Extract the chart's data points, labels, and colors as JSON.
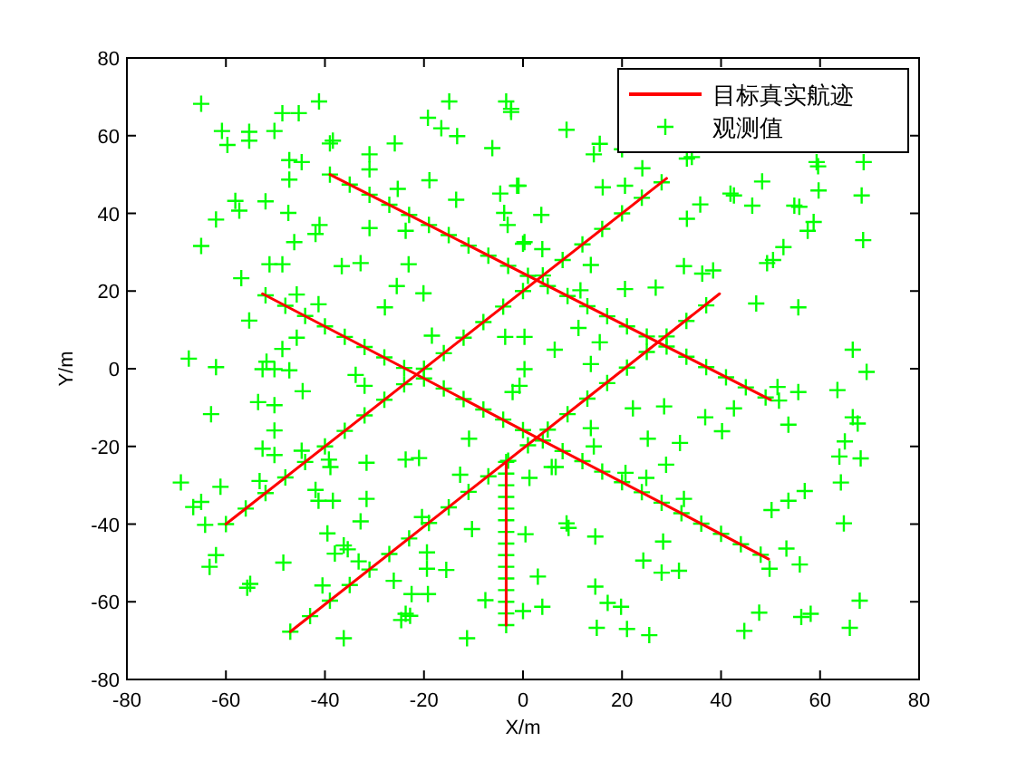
{
  "chart_data": {
    "type": "scatter",
    "xlabel": "X/m",
    "ylabel": "Y/m",
    "xlim": [
      -80,
      80
    ],
    "ylim": [
      -80,
      80
    ],
    "xticks": [
      -80,
      -60,
      -40,
      -20,
      0,
      20,
      40,
      60,
      80
    ],
    "yticks": [
      -80,
      -60,
      -40,
      -20,
      0,
      20,
      40,
      60,
      80
    ],
    "legend": "top right",
    "series": [
      {
        "name": "目标真实航迹",
        "type": "line",
        "color": "#ff0000",
        "line_style": "solid",
        "x": [
          -60,
          29
        ],
        "values": [
          -40,
          49
        ]
      },
      {
        "type": "line",
        "color": "#ff0000",
        "line_style": "solid",
        "x": [
          -39,
          50
        ],
        "values": [
          50,
          -8
        ]
      },
      {
        "type": "line",
        "color": "#ff0000",
        "line_style": "solid",
        "x": [
          -52.6,
          49.6
        ],
        "values": [
          19.3,
          -49
        ]
      },
      {
        "type": "line",
        "color": "#ff0000",
        "line_style": "solid",
        "x": [
          -47,
          39.7
        ],
        "values": [
          -67.7,
          19.3
        ]
      },
      {
        "type": "line",
        "color": "#ff0000",
        "line_style": "solid",
        "x": [
          -3.4,
          -3.4
        ],
        "values": [
          -24,
          -66
        ]
      },
      {
        "name": "观测值",
        "color": "#00ff00",
        "marker": "cross",
        "x": [
          -60,
          -56,
          -52,
          -48,
          -44,
          -40,
          -36,
          -32,
          -28,
          -24,
          -20,
          -16,
          -12,
          -8,
          -4,
          0,
          4,
          8,
          12,
          16,
          20,
          24,
          28,
          -39,
          -35,
          -31,
          -27,
          -23,
          -19,
          -15,
          -11,
          -7,
          -3,
          1,
          5,
          9,
          13,
          17,
          21,
          25,
          29,
          33,
          37,
          41,
          45,
          49,
          -52,
          -48,
          -44,
          -40,
          -36,
          -32,
          -28,
          -24,
          -20,
          -16,
          -12,
          -8,
          -4,
          0,
          4,
          8,
          12,
          16,
          20,
          24,
          28,
          32,
          36,
          40,
          44,
          48,
          -47,
          -43,
          -39,
          -35,
          -31,
          -27,
          -23,
          -19,
          -15,
          -11,
          -7,
          -3,
          1,
          5,
          9,
          13,
          17,
          21,
          25,
          29,
          33,
          37,
          -3.4,
          -3.4,
          -3.4,
          -3.4,
          -3.4,
          -3.4,
          -3.4,
          -3.4,
          -3.4,
          -3.4,
          -3.4,
          -3.4,
          -3.4,
          -3.4,
          -3.4,
          -65.0,
          -60.8,
          -59.7,
          -55.3,
          -55.3,
          -50.2,
          -48.6,
          -45.3,
          -41.2,
          -38.4,
          -39.0,
          -47.2,
          -44.7,
          -47.2,
          -31.0,
          -31.0,
          -25.9,
          -19.2,
          -16.5,
          -13.3,
          -14.9,
          -3.4,
          -2.4,
          -6.2,
          -4.6,
          -1.2,
          -3.8,
          -3.1,
          0.3,
          -18.9,
          -13.5,
          -25.3,
          -23.7,
          -31.0,
          -41.1,
          -41.9,
          -46.2,
          -47.4,
          -52.0,
          -58.1,
          -57.3,
          -62.0,
          -65.0,
          -51.2,
          -48.6,
          -36.6,
          -32.8,
          -23.1,
          -56.9,
          -25.5,
          -20.1,
          -27.9,
          -45.7,
          -41.3,
          -55.3,
          -48.6,
          -45.7,
          -51.8,
          -50.2,
          -52.6,
          -67.5,
          -62.0,
          -47.2,
          -33.8,
          -32.0,
          -44.5,
          -18.4,
          -3.6,
          -2.1,
          -0.7,
          -2.4,
          8.8,
          15.5,
          14.3,
          20.0,
          24.1,
          33.1,
          34.1,
          59.3,
          59.6,
          68.8,
          48.3,
          41.9,
          42.6,
          46.3,
          54.8,
          55.8,
          59.7,
          68.4,
          16.1,
          20.6,
          -0.9,
          3.7,
          33.1,
          35.8,
          58.7,
          57.5,
          52.6,
          49.3,
          50.5,
          68.7,
          3.9,
          0.0,
          13.7,
          32.5,
          36.2,
          38.4,
          20.6,
          26.8,
          11.6,
          47.1,
          55.6,
          0.3,
          11.2,
          6.4,
          15.5,
          13.7,
          66.6,
          69.4,
          63.5,
          55.6,
          51.4,
          0.3,
          -69.1,
          -66.6,
          -65.0,
          -64.2,
          -61.1,
          -62.0,
          -63.3,
          -63.0,
          -53.5,
          -50.2,
          -50.2,
          -52.6,
          -50.2,
          -44.7,
          -39.2,
          -38.9,
          -31.6,
          -23.7,
          -21.0,
          -53.2,
          -41.9,
          -41.3,
          -38.4,
          -31.6,
          -32.8,
          -39.5,
          -36.2,
          -38.0,
          -35.4,
          -33.2,
          -40.5,
          -48.4,
          -55.1,
          -55.7,
          -26.1,
          -22.5,
          -19.2,
          -23.7,
          -24.6,
          -22.8,
          -36.2,
          -11.3,
          -15.5,
          -19.4,
          -19.4,
          -20.4,
          -7.6,
          -10.3,
          -12.7,
          -10.9,
          51.7,
          42.6,
          36.8,
          40.2,
          28.5,
          22.2,
          25.2,
          31.7,
          53.6,
          66.6,
          67.6,
          65.0,
          63.9,
          68.2,
          64.2,
          56.9,
          53.6,
          50.2,
          64.8,
          28.9,
          24.9,
          20.7,
          1.3,
          13.7,
          14.3,
          5.8,
          6.6,
          8.8,
          9.2,
          14.6,
          0.5,
          32.5,
          28.3,
          24.3,
          28.0,
          31.5,
          53.2,
          55.9,
          49.8,
          3.0,
          3.9,
          0.0,
          14.6,
          17.1,
          19.8,
          14.9,
          21.0,
          25.5,
          44.7,
          47.7,
          56.2,
          58.1,
          68.0,
          66.0
        ],
        "values": [
          -40,
          -36,
          -32,
          -28,
          -24,
          -20,
          -16,
          -12,
          -8,
          -4,
          0,
          4,
          8,
          12,
          16,
          20,
          24,
          28,
          32,
          36,
          40,
          44,
          48,
          50,
          47.4,
          44.8,
          42.2,
          39.6,
          37.0,
          34.4,
          31.7,
          29.1,
          26.5,
          23.9,
          21.3,
          18.7,
          16.1,
          13.5,
          10.9,
          8.3,
          5.7,
          3.1,
          0.4,
          -2.2,
          -4.8,
          -7.4,
          18.9,
          16.2,
          13.6,
          10.9,
          8.2,
          5.6,
          2.9,
          0.2,
          -2.5,
          -5.1,
          -7.8,
          -10.5,
          -13.1,
          -15.8,
          -18.5,
          -21.2,
          -23.8,
          -26.5,
          -29.2,
          -31.8,
          -34.5,
          -37.2,
          -39.9,
          -42.5,
          -45.2,
          -47.9,
          -67.7,
          -63.7,
          -59.7,
          -55.7,
          -51.7,
          -47.7,
          -43.7,
          -39.7,
          -35.7,
          -31.7,
          -27.7,
          -23.7,
          -19.7,
          -15.7,
          -11.7,
          -7.7,
          -3.7,
          0.3,
          4.3,
          8.3,
          12.3,
          16.3,
          -24,
          -27,
          -30,
          -33,
          -36,
          -39,
          -42,
          -45,
          -48,
          -51,
          -54,
          -57,
          -60,
          -63,
          -66,
          68.2,
          61.2,
          57.6,
          61.0,
          58.7,
          61.2,
          65.8,
          65.8,
          68.8,
          58.7,
          58.0,
          53.7,
          53.2,
          48.7,
          55.2,
          51.3,
          58.0,
          64.6,
          61.9,
          59.9,
          68.8,
          68.8,
          66.1,
          56.8,
          45.1,
          47.1,
          40.1,
          37.0,
          32.6,
          48.5,
          43.5,
          46.3,
          35.5,
          36.2,
          37.0,
          34.7,
          32.6,
          40.1,
          43.1,
          43.2,
          40.7,
          38.4,
          31.6,
          26.9,
          26.9,
          26.4,
          27.2,
          26.9,
          23.3,
          21.3,
          19.4,
          15.8,
          19.1,
          16.6,
          12.4,
          5.1,
          8.0,
          1.8,
          -0.1,
          -0.1,
          2.6,
          0.4,
          -0.4,
          -1.6,
          -4.4,
          -5.8,
          8.5,
          8.2,
          -6.0,
          -4.4,
          66.9,
          61.5,
          57.9,
          55.2,
          56.5,
          51.6,
          54.1,
          54.5,
          53.2,
          52.1,
          53.2,
          48.2,
          45.1,
          44.6,
          42.0,
          42.0,
          41.7,
          45.9,
          44.6,
          46.7,
          47.1,
          47.1,
          39.6,
          38.6,
          42.3,
          37.8,
          35.5,
          31.3,
          27.2,
          28.0,
          33.1,
          30.8,
          32.2,
          26.7,
          26.4,
          24.5,
          25.3,
          20.5,
          20.9,
          20.2,
          16.8,
          15.8,
          8.2,
          10.5,
          4.9,
          6.8,
          1.2,
          4.9,
          -0.8,
          -5.5,
          -6.0,
          -4.7,
          -0.1,
          -29.3,
          -35.6,
          -34.3,
          -40.2,
          -30.4,
          -48.0,
          -51.0,
          -11.7,
          -8.6,
          -9.4,
          -15.9,
          -20.6,
          -22.2,
          -21.1,
          -23.4,
          -25.3,
          -24.2,
          -23.4,
          -23.0,
          -28.9,
          -31.2,
          -34.0,
          -34.0,
          -33.5,
          -39.3,
          -42.4,
          -45.5,
          -47.6,
          -46.5,
          -49.6,
          -55.8,
          -49.9,
          -55.4,
          -56.4,
          -54.6,
          -58.0,
          -58.0,
          -63.1,
          -64.7,
          -63.6,
          -69.4,
          -69.4,
          -51.8,
          -47.3,
          -51.5,
          -38.2,
          -59.6,
          -41.3,
          -27.3,
          -18.0,
          -8.2,
          -10.2,
          -12.5,
          -16.1,
          -9.7,
          -10.2,
          -18.0,
          -19.1,
          -14.4,
          -12.5,
          -14.1,
          -18.7,
          -22.6,
          -23.1,
          -29.3,
          -31.5,
          -34.0,
          -36.4,
          -39.8,
          -24.7,
          -28.1,
          -26.8,
          -28.1,
          -15.3,
          -20.0,
          -25.3,
          -25.3,
          -39.8,
          -41.0,
          -43.2,
          -42.6,
          -33.5,
          -44.5,
          -49.4,
          -52.5,
          -52.0,
          -46.3,
          -50.4,
          -51.5,
          -53.5,
          -61.3,
          -62.4,
          -56.1,
          -60.3,
          -61.3,
          -66.7,
          -67.0,
          -68.6,
          -67.5,
          -62.8,
          -63.9,
          -63.1,
          -59.7,
          -66.7
        ]
      }
    ]
  }
}
